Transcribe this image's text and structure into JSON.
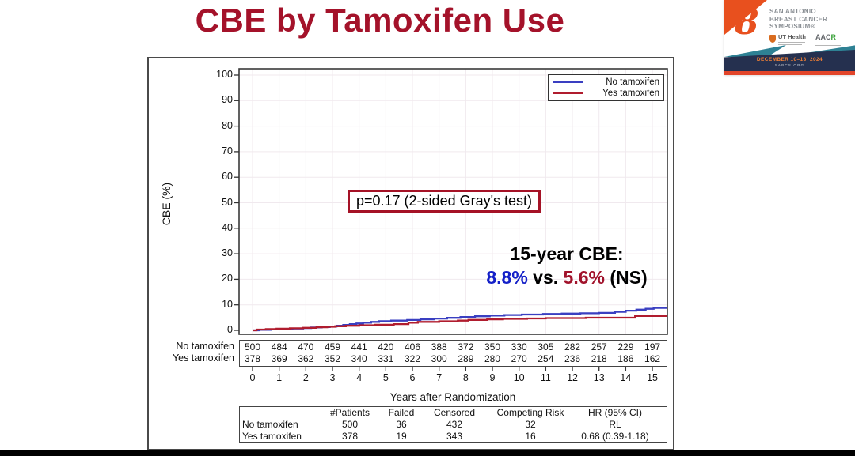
{
  "slide": {
    "title": "CBE by Tamoxifen Use",
    "title_color": "#A4122A"
  },
  "logo": {
    "ribbon_glyph": "8",
    "event_line1": "SAN ANTONIO",
    "event_line2": "BREAST CANCER",
    "event_line3": "SYMPOSIUM®",
    "ut_label": "UT Health",
    "aacr_main": "AAC",
    "aacr_r": "R",
    "date": "DECEMBER 10–13, 2024",
    "site": "SABCS.ORG",
    "orange": "#E8501E",
    "teal": "#2E8194",
    "navy": "#25304F"
  },
  "chart_data": {
    "type": "line",
    "subtype": "cumulative-incidence-step",
    "title": "",
    "xlabel": "Years after Randomization",
    "ylabel": "CBE (%)",
    "xlim": [
      0,
      15.56
    ],
    "ylim": [
      0,
      100
    ],
    "x_ticks": [
      0,
      1,
      2,
      3,
      4,
      5,
      6,
      7,
      8,
      9,
      10,
      11,
      12,
      13,
      14,
      15
    ],
    "y_ticks": [
      0,
      10,
      20,
      30,
      40,
      50,
      60,
      70,
      80,
      90,
      100
    ],
    "grid": true,
    "legend_position": "top-right",
    "series": [
      {
        "name": "No tamoxifen",
        "color": "#3A3FC1",
        "final_value_pct": 8.8,
        "steps": [
          [
            0,
            0
          ],
          [
            0.25,
            0.2
          ],
          [
            0.7,
            0.4
          ],
          [
            1.1,
            0.55
          ],
          [
            1.5,
            0.7
          ],
          [
            1.9,
            0.9
          ],
          [
            2.2,
            1.1
          ],
          [
            2.6,
            1.3
          ],
          [
            2.9,
            1.5
          ],
          [
            3.15,
            1.8
          ],
          [
            3.4,
            2.1
          ],
          [
            3.65,
            2.4
          ],
          [
            3.9,
            2.7
          ],
          [
            4.15,
            3.0
          ],
          [
            4.45,
            3.3
          ],
          [
            4.75,
            3.6
          ],
          [
            5.2,
            3.8
          ],
          [
            5.8,
            4.05
          ],
          [
            6.3,
            4.3
          ],
          [
            6.8,
            4.6
          ],
          [
            7.3,
            4.9
          ],
          [
            7.8,
            5.2
          ],
          [
            8.35,
            5.5
          ],
          [
            8.9,
            5.8
          ],
          [
            9.45,
            6.0
          ],
          [
            10.1,
            6.2
          ],
          [
            10.9,
            6.4
          ],
          [
            11.6,
            6.55
          ],
          [
            12.3,
            6.7
          ],
          [
            13.0,
            6.85
          ],
          [
            13.6,
            7.25
          ],
          [
            14.0,
            7.7
          ],
          [
            14.4,
            8.1
          ],
          [
            14.75,
            8.45
          ],
          [
            15.05,
            8.8
          ]
        ]
      },
      {
        "name": "Yes tamoxifen",
        "color": "#B01C2E",
        "final_value_pct": 5.6,
        "steps": [
          [
            0,
            0
          ],
          [
            0.15,
            0.3
          ],
          [
            0.5,
            0.5
          ],
          [
            0.9,
            0.65
          ],
          [
            1.4,
            0.8
          ],
          [
            1.9,
            1.0
          ],
          [
            2.4,
            1.2
          ],
          [
            2.8,
            1.4
          ],
          [
            3.1,
            1.6
          ],
          [
            3.5,
            1.8
          ],
          [
            4.0,
            2.0
          ],
          [
            4.6,
            2.2
          ],
          [
            5.3,
            2.45
          ],
          [
            5.85,
            3.0
          ],
          [
            6.2,
            3.3
          ],
          [
            7.0,
            3.55
          ],
          [
            7.7,
            3.8
          ],
          [
            8.1,
            4.1
          ],
          [
            8.8,
            4.3
          ],
          [
            9.4,
            4.5
          ],
          [
            10.3,
            4.65
          ],
          [
            11.0,
            4.8
          ],
          [
            12.5,
            4.95
          ],
          [
            14.35,
            5.6
          ]
        ]
      }
    ]
  },
  "annotations": {
    "p_value": "p=0.17 (2-sided Gray's test)",
    "cbe_label": "15-year CBE:",
    "cbe_blue": "8.8%",
    "cbe_vs": " vs. ",
    "cbe_red": "5.6%",
    "cbe_ns": " (NS)"
  },
  "risk_table": {
    "rows": [
      {
        "label": "No tamoxifen",
        "counts": [
          500,
          484,
          470,
          459,
          441,
          420,
          406,
          388,
          372,
          350,
          330,
          305,
          282,
          257,
          229,
          197
        ]
      },
      {
        "label": "Yes tamoxifen",
        "counts": [
          378,
          369,
          362,
          352,
          340,
          331,
          322,
          300,
          289,
          280,
          270,
          254,
          236,
          218,
          186,
          162
        ]
      }
    ]
  },
  "summary_table": {
    "headers": [
      "",
      "#Patients",
      "Failed",
      "Censored",
      "Competing Risk",
      "HR (95% CI)"
    ],
    "rows": [
      [
        "No tamoxifen",
        "500",
        "36",
        "432",
        "32",
        "RL"
      ],
      [
        "Yes tamoxifen",
        "378",
        "19",
        "343",
        "16",
        "0.68 (0.39-1.18)"
      ]
    ]
  }
}
